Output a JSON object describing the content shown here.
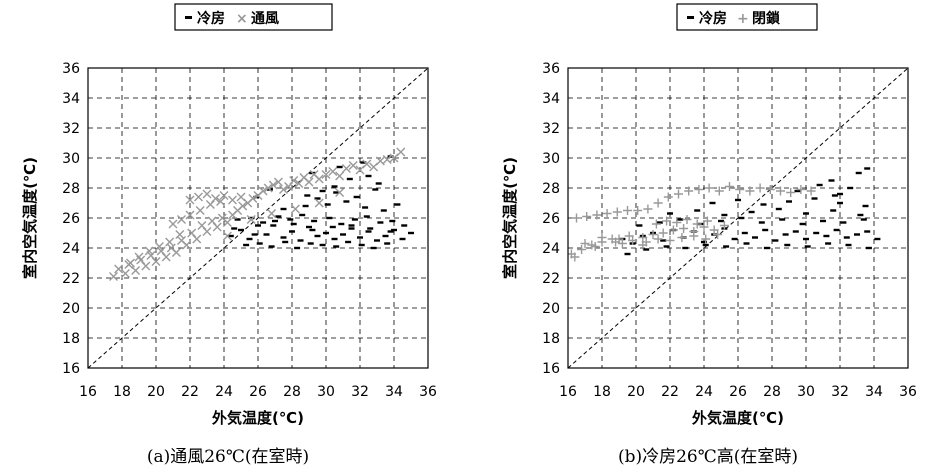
{
  "chart_data": [
    {
      "type": "scatter",
      "caption": "(a)通風26℃(在室時)",
      "xlabel": "外気温度(℃)",
      "ylabel": "室内空気温度(℃)",
      "xlim": [
        16,
        36
      ],
      "ylim": [
        16,
        36
      ],
      "xticks": [
        "16",
        "18",
        "20",
        "22",
        "24",
        "26",
        "28",
        "30",
        "32",
        "34",
        "36"
      ],
      "yticks": [
        "16",
        "18",
        "20",
        "22",
        "24",
        "26",
        "28",
        "30",
        "32",
        "34",
        "36"
      ],
      "grid": true,
      "diagonal_reference": true,
      "legend_position": "top-center",
      "series": [
        {
          "name": "冷房",
          "marker": "dash",
          "color": "#000000",
          "x": [
            24.4,
            25.0,
            25.5,
            26.0,
            26.5,
            27.0,
            27.5,
            28.0,
            28.5,
            29.0,
            29.5,
            30.0,
            30.5,
            31.0,
            31.5,
            32.0,
            32.5,
            33.0,
            33.5,
            34.0,
            34.5,
            35.0,
            24.8,
            25.6,
            26.3,
            27.2,
            27.9,
            28.6,
            29.3,
            30.2,
            30.9,
            31.7,
            32.4,
            33.2,
            33.9,
            34.6,
            25.3,
            26.1,
            26.8,
            27.6,
            28.3,
            29.1,
            29.8,
            30.6,
            31.3,
            32.1,
            32.8,
            33.6,
            24.6,
            25.8,
            26.9,
            28.1,
            29.2,
            30.4,
            31.5,
            32.6,
            33.8,
            27.5,
            28.8,
            30.1,
            31.2,
            32.3,
            33.4,
            34.2,
            29.5,
            30.6,
            31.8,
            32.9,
            33.1,
            32.5,
            31.4,
            30.5,
            29.8,
            28.9,
            33.8,
            32.2,
            30.8,
            29.2,
            26.7,
            25.9
          ],
          "y": [
            24.8,
            25.2,
            24.6,
            25.5,
            24.9,
            25.8,
            24.7,
            25.1,
            24.5,
            25.4,
            24.8,
            25.0,
            24.6,
            24.9,
            25.3,
            24.7,
            25.1,
            24.5,
            24.8,
            25.2,
            24.6,
            25.0,
            25.9,
            26.0,
            25.7,
            26.1,
            25.9,
            26.2,
            25.8,
            26.0,
            25.6,
            25.9,
            26.1,
            25.7,
            25.8,
            25.5,
            24.2,
            24.3,
            24.1,
            24.4,
            24.0,
            24.3,
            24.2,
            24.1,
            24.4,
            24.2,
            24.0,
            24.3,
            25.3,
            24.9,
            25.5,
            25.6,
            25.2,
            25.4,
            25.5,
            25.3,
            25.1,
            26.6,
            26.8,
            26.9,
            27.1,
            26.7,
            26.5,
            26.9,
            27.3,
            27.7,
            27.4,
            27.9,
            28.3,
            28.8,
            28.6,
            28.1,
            27.8,
            27.5,
            30.1,
            29.7,
            29.4,
            29.0,
            27.9,
            27.4
          ]
        },
        {
          "name": "通風",
          "marker": "x",
          "color": "#999999",
          "x": [
            17.5,
            17.8,
            18.2,
            18.5,
            18.8,
            19.1,
            19.4,
            19.7,
            20.0,
            20.3,
            20.6,
            20.9,
            21.2,
            21.5,
            21.8,
            22.1,
            22.4,
            22.7,
            23.0,
            23.3,
            23.6,
            23.9,
            24.2,
            24.5,
            24.8,
            25.1,
            25.4,
            25.7,
            26.0,
            26.3,
            26.6,
            26.9,
            27.2,
            27.5,
            27.8,
            28.1,
            28.4,
            28.7,
            29.0,
            29.3,
            29.6,
            30.0,
            30.4,
            30.8,
            31.2,
            31.6,
            32.0,
            32.4,
            32.8,
            33.2,
            33.6,
            34.0,
            34.4,
            22.0,
            22.5,
            23.0,
            23.5,
            24.0,
            24.5,
            25.0,
            21.0,
            21.5,
            22.0,
            22.6,
            23.2,
            23.8,
            18.4,
            19.0,
            19.6,
            20.2,
            20.8,
            21.4,
            24.2,
            25.6,
            26.8,
            28.2,
            29.6,
            30.8
          ],
          "y": [
            22.1,
            22.6,
            22.3,
            23.0,
            22.5,
            23.2,
            22.8,
            23.5,
            23.1,
            23.8,
            23.4,
            24.0,
            23.7,
            24.5,
            24.2,
            25.0,
            24.6,
            25.5,
            25.1,
            25.8,
            25.4,
            26.0,
            25.7,
            26.2,
            26.5,
            26.8,
            27.0,
            27.3,
            27.5,
            27.8,
            28.0,
            28.2,
            28.4,
            27.9,
            28.1,
            28.5,
            28.3,
            28.7,
            28.4,
            28.9,
            28.6,
            28.9,
            29.1,
            28.8,
            29.3,
            29.5,
            29.2,
            29.6,
            29.4,
            29.8,
            29.9,
            30.0,
            30.4,
            27.2,
            27.4,
            27.6,
            27.3,
            27.5,
            27.2,
            27.4,
            25.6,
            25.9,
            26.2,
            26.5,
            26.9,
            27.1,
            22.9,
            23.4,
            23.8,
            24.1,
            24.4,
            24.9,
            24.8,
            25.9,
            26.3,
            26.6,
            27.0,
            27.7
          ]
        }
      ]
    },
    {
      "type": "scatter",
      "caption": "(b)冷房26℃高(在室時)",
      "xlabel": "外気温度(℃)",
      "ylabel": "室内空気温度(℃)",
      "xlim": [
        16,
        36
      ],
      "ylim": [
        16,
        36
      ],
      "xticks": [
        "16",
        "18",
        "20",
        "22",
        "24",
        "26",
        "28",
        "30",
        "32",
        "34",
        "36"
      ],
      "yticks": [
        "16",
        "18",
        "20",
        "22",
        "24",
        "26",
        "28",
        "30",
        "32",
        "34",
        "36"
      ],
      "grid": true,
      "diagonal_reference": true,
      "legend_position": "top-center",
      "series": [
        {
          "name": "冷房",
          "marker": "dash",
          "color": "#000000",
          "x": [
            19.2,
            19.8,
            20.4,
            21.0,
            21.6,
            22.2,
            22.8,
            23.4,
            24.0,
            24.6,
            25.2,
            25.8,
            26.4,
            27.0,
            27.6,
            28.2,
            28.8,
            29.4,
            30.0,
            30.6,
            31.2,
            31.8,
            32.4,
            33.0,
            33.6,
            34.2,
            19.5,
            20.6,
            21.8,
            22.9,
            24.1,
            25.3,
            26.5,
            27.7,
            28.9,
            30.1,
            31.3,
            32.5,
            33.7,
            20.2,
            21.4,
            22.6,
            23.8,
            25.0,
            26.2,
            27.4,
            28.6,
            29.8,
            31.0,
            32.2,
            33.4,
            22.0,
            23.6,
            25.2,
            26.8,
            28.4,
            30.0,
            31.6,
            33.2,
            24.5,
            26.0,
            27.5,
            29.0,
            30.5,
            32.0,
            33.5,
            31.5,
            32.6,
            33.6,
            32.0,
            33.1,
            29.5,
            30.8,
            31.7
          ],
          "y": [
            24.6,
            24.3,
            24.8,
            25.0,
            24.5,
            25.2,
            24.7,
            25.1,
            24.4,
            24.9,
            25.3,
            24.6,
            25.0,
            24.7,
            25.2,
            24.5,
            24.9,
            25.1,
            24.6,
            25.0,
            24.8,
            25.2,
            24.7,
            24.9,
            25.1,
            24.6,
            23.6,
            23.9,
            24.1,
            24.0,
            24.2,
            24.1,
            24.3,
            24.0,
            24.2,
            24.1,
            24.3,
            24.2,
            24.0,
            25.5,
            25.7,
            25.9,
            25.6,
            25.8,
            26.0,
            25.7,
            25.9,
            25.6,
            25.8,
            25.7,
            25.9,
            26.3,
            26.5,
            26.2,
            26.4,
            26.6,
            26.3,
            26.5,
            26.2,
            27.0,
            27.2,
            26.9,
            27.1,
            27.3,
            27.0,
            26.8,
            28.5,
            28.0,
            29.3,
            27.6,
            29.0,
            27.8,
            28.2,
            27.5
          ]
        },
        {
          "name": "閉鎖",
          "marker": "plus",
          "color": "#999999",
          "x": [
            16.2,
            16.8,
            17.4,
            18.0,
            18.6,
            19.2,
            19.8,
            20.4,
            21.0,
            21.6,
            22.2,
            22.8,
            23.4,
            24.0,
            24.6,
            25.2,
            16.5,
            17.1,
            17.7,
            18.3,
            18.9,
            19.5,
            20.1,
            20.7,
            21.3,
            21.9,
            22.5,
            23.1,
            23.7,
            24.3,
            24.9,
            25.5,
            26.1,
            26.7,
            27.3,
            27.9,
            28.5,
            29.1,
            29.7,
            30.3,
            21.2,
            21.8,
            22.4,
            23.0,
            23.6,
            24.2,
            20.6,
            21.3,
            22.0,
            22.7,
            23.4,
            24.1,
            24.8,
            17.0,
            18.0,
            19.0,
            16.4,
            17.6,
            18.8,
            19.6,
            20.4
          ],
          "y": [
            23.6,
            23.9,
            24.2,
            24.4,
            24.6,
            24.3,
            24.5,
            24.7,
            24.9,
            25.0,
            25.2,
            25.3,
            25.1,
            25.4,
            25.2,
            25.5,
            26.0,
            26.1,
            26.2,
            26.3,
            26.4,
            26.5,
            26.5,
            26.6,
            27.0,
            27.4,
            27.6,
            27.8,
            27.9,
            28.0,
            27.8,
            28.1,
            27.9,
            27.8,
            28.0,
            27.9,
            27.8,
            27.7,
            27.9,
            27.8,
            25.6,
            25.8,
            25.7,
            25.9,
            25.6,
            25.8,
            24.4,
            24.6,
            24.5,
            24.7,
            24.8,
            24.6,
            24.9,
            24.3,
            24.7,
            24.6,
            23.4,
            24.1,
            24.4,
            24.8,
            24.2
          ]
        }
      ]
    }
  ]
}
